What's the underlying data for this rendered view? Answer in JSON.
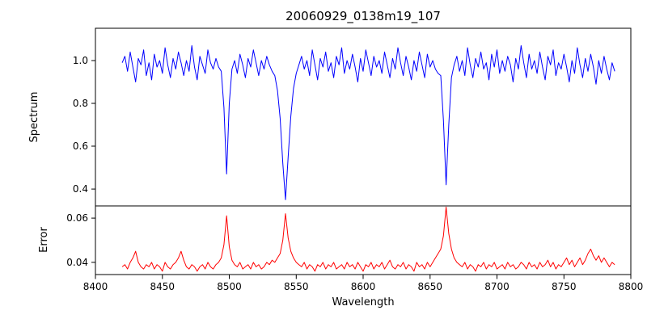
{
  "chart_data": {
    "type": "line",
    "title": "20060929_0138m19_107",
    "xlabel": "Wavelength",
    "xlim": [
      8400,
      8800
    ],
    "xticks": [
      8400,
      8450,
      8500,
      8550,
      8600,
      8650,
      8700,
      8750,
      8800
    ],
    "xtick_labels": [
      "8400",
      "8450",
      "8500",
      "8550",
      "8600",
      "8650",
      "8700",
      "8750",
      "8800"
    ],
    "grid": false,
    "legend": "none",
    "panels": [
      {
        "name": "spectrum",
        "ylabel": "Spectrum",
        "color": "#0000ff",
        "ylim": [
          0.321,
          1.151
        ],
        "yticks": [
          0.4,
          0.6,
          0.8,
          1.0
        ],
        "ytick_labels": [
          "0.4",
          "0.6",
          "0.8",
          "1.0"
        ],
        "x_start": 8420,
        "x_step": 2,
        "absorption_line_centers": [
          8498,
          8542,
          8662
        ],
        "values": [
          0.99,
          1.02,
          0.95,
          1.04,
          0.97,
          0.9,
          1.01,
          0.98,
          1.05,
          0.93,
          0.99,
          0.91,
          1.03,
          0.97,
          1.0,
          0.94,
          1.06,
          0.98,
          0.92,
          1.01,
          0.96,
          1.04,
          0.99,
          0.93,
          1.0,
          0.95,
          1.07,
          0.97,
          0.91,
          1.02,
          0.98,
          0.94,
          1.05,
          0.99,
          0.96,
          1.01,
          0.97,
          0.95,
          0.78,
          0.47,
          0.8,
          0.96,
          1.0,
          0.94,
          1.03,
          0.98,
          0.92,
          1.01,
          0.97,
          1.05,
          0.99,
          0.93,
          1.0,
          0.96,
          1.02,
          0.98,
          0.95,
          0.93,
          0.86,
          0.73,
          0.52,
          0.35,
          0.55,
          0.74,
          0.87,
          0.94,
          0.98,
          1.02,
          0.96,
          1.0,
          0.93,
          1.05,
          0.98,
          0.91,
          1.01,
          0.97,
          1.04,
          0.95,
          0.99,
          0.92,
          1.02,
          0.98,
          1.06,
          0.94,
          1.0,
          0.96,
          1.03,
          0.97,
          0.9,
          1.01,
          0.95,
          1.05,
          0.99,
          0.93,
          1.02,
          0.97,
          1.0,
          0.94,
          1.04,
          0.98,
          0.92,
          1.01,
          0.96,
          1.06,
          0.99,
          0.93,
          1.02,
          0.97,
          0.91,
          1.0,
          0.95,
          1.04,
          0.98,
          0.92,
          1.03,
          0.97,
          1.0,
          0.96,
          0.94,
          0.93,
          0.72,
          0.42,
          0.7,
          0.92,
          0.98,
          1.02,
          0.95,
          1.0,
          0.93,
          1.06,
          0.98,
          0.92,
          1.01,
          0.97,
          1.04,
          0.96,
          0.99,
          0.91,
          1.03,
          0.97,
          1.05,
          0.94,
          1.0,
          0.95,
          1.02,
          0.98,
          0.9,
          1.01,
          0.96,
          1.07,
          0.99,
          0.92,
          1.03,
          0.96,
          1.0,
          0.94,
          1.04,
          0.97,
          0.91,
          1.02,
          0.98,
          1.05,
          0.93,
          0.99,
          0.96,
          1.03,
          0.97,
          0.9,
          1.0,
          0.94,
          1.06,
          0.98,
          0.92,
          1.01,
          0.95,
          1.03,
          0.97,
          0.89,
          1.0,
          0.94,
          1.02,
          0.96,
          0.91,
          0.99,
          0.95
        ]
      },
      {
        "name": "error",
        "ylabel": "Error",
        "color": "#ff0000",
        "ylim": [
          0.0345,
          0.0655
        ],
        "yticks": [
          0.04,
          0.06
        ],
        "ytick_labels": [
          "0.04",
          "0.06"
        ],
        "x_start": 8420,
        "x_step": 2,
        "peak_centers": [
          8498,
          8542,
          8662
        ],
        "values": [
          0.038,
          0.039,
          0.037,
          0.04,
          0.042,
          0.045,
          0.04,
          0.038,
          0.037,
          0.039,
          0.038,
          0.04,
          0.037,
          0.039,
          0.038,
          0.036,
          0.04,
          0.038,
          0.037,
          0.039,
          0.04,
          0.042,
          0.045,
          0.041,
          0.038,
          0.037,
          0.039,
          0.038,
          0.036,
          0.038,
          0.039,
          0.037,
          0.04,
          0.038,
          0.037,
          0.039,
          0.04,
          0.042,
          0.048,
          0.061,
          0.047,
          0.041,
          0.039,
          0.038,
          0.04,
          0.037,
          0.038,
          0.039,
          0.037,
          0.04,
          0.038,
          0.039,
          0.037,
          0.038,
          0.04,
          0.039,
          0.041,
          0.04,
          0.042,
          0.044,
          0.05,
          0.062,
          0.051,
          0.045,
          0.042,
          0.04,
          0.039,
          0.038,
          0.04,
          0.037,
          0.039,
          0.038,
          0.036,
          0.039,
          0.038,
          0.04,
          0.037,
          0.039,
          0.038,
          0.04,
          0.037,
          0.038,
          0.039,
          0.037,
          0.04,
          0.038,
          0.039,
          0.037,
          0.04,
          0.038,
          0.036,
          0.039,
          0.038,
          0.04,
          0.037,
          0.039,
          0.038,
          0.04,
          0.037,
          0.039,
          0.041,
          0.038,
          0.037,
          0.039,
          0.038,
          0.04,
          0.037,
          0.039,
          0.038,
          0.036,
          0.04,
          0.038,
          0.039,
          0.037,
          0.04,
          0.038,
          0.04,
          0.042,
          0.044,
          0.046,
          0.052,
          0.065,
          0.053,
          0.046,
          0.042,
          0.04,
          0.039,
          0.038,
          0.04,
          0.037,
          0.039,
          0.038,
          0.036,
          0.039,
          0.038,
          0.04,
          0.037,
          0.039,
          0.038,
          0.04,
          0.037,
          0.038,
          0.039,
          0.037,
          0.04,
          0.038,
          0.039,
          0.037,
          0.038,
          0.04,
          0.039,
          0.037,
          0.04,
          0.038,
          0.039,
          0.037,
          0.04,
          0.038,
          0.039,
          0.041,
          0.038,
          0.04,
          0.037,
          0.039,
          0.038,
          0.04,
          0.042,
          0.039,
          0.041,
          0.038,
          0.04,
          0.042,
          0.039,
          0.041,
          0.044,
          0.046,
          0.043,
          0.041,
          0.043,
          0.04,
          0.042,
          0.04,
          0.038,
          0.04,
          0.039
        ]
      }
    ]
  }
}
